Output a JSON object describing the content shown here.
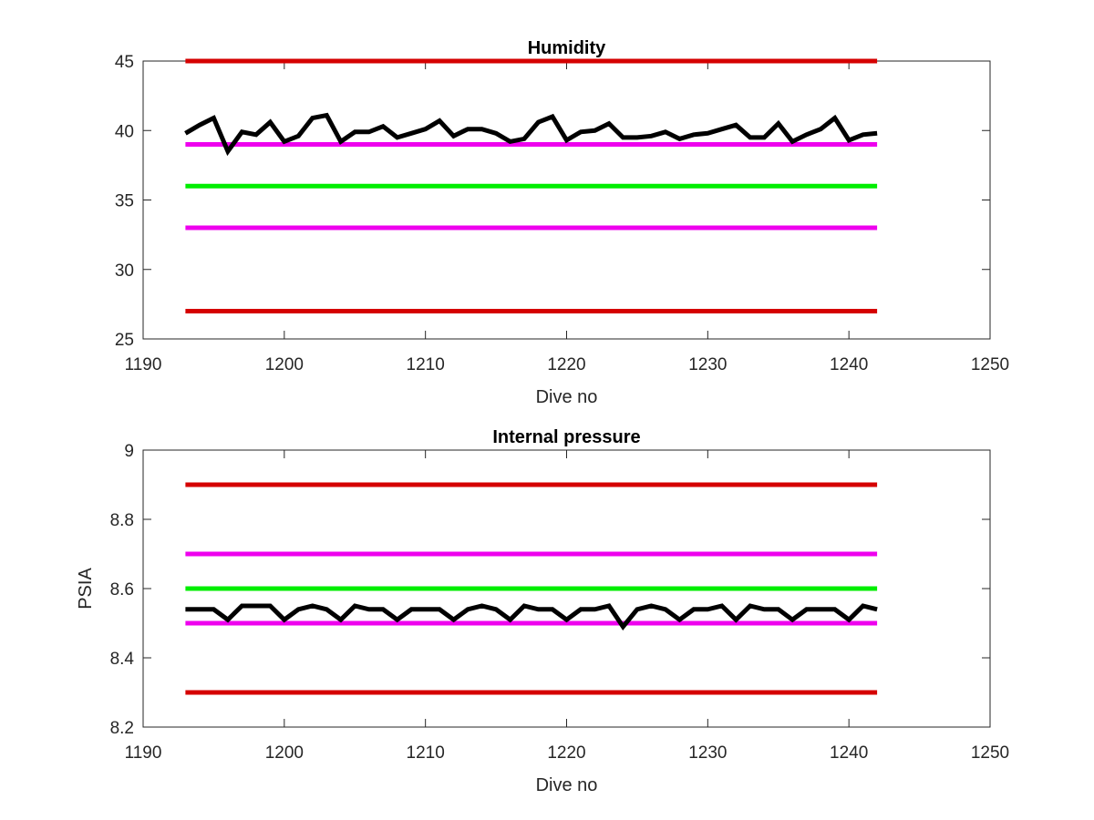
{
  "chart_data": [
    {
      "type": "line",
      "title": "Humidity",
      "xlabel": "Dive no",
      "ylabel": "",
      "xlim": [
        1190,
        1250
      ],
      "ylim": [
        25,
        45
      ],
      "xticks": [
        1190,
        1200,
        1210,
        1220,
        1230,
        1240,
        1250
      ],
      "yticks": [
        25,
        30,
        35,
        40,
        45
      ],
      "grid": false,
      "series": [
        {
          "role": "limit",
          "color": "#d50000",
          "x": [
            1193,
            1242
          ],
          "y": [
            45,
            45
          ]
        },
        {
          "role": "limit",
          "color": "#ee00ee",
          "x": [
            1193,
            1242
          ],
          "y": [
            39,
            39
          ]
        },
        {
          "role": "target",
          "color": "#00ee00",
          "x": [
            1193,
            1242
          ],
          "y": [
            36,
            36
          ]
        },
        {
          "role": "limit",
          "color": "#ee00ee",
          "x": [
            1193,
            1242
          ],
          "y": [
            33,
            33
          ]
        },
        {
          "role": "limit",
          "color": "#d50000",
          "x": [
            1193,
            1242
          ],
          "y": [
            27,
            27
          ]
        },
        {
          "role": "measurement",
          "color": "#000000",
          "x": [
            1193,
            1194,
            1195,
            1196,
            1197,
            1198,
            1199,
            1200,
            1201,
            1202,
            1203,
            1204,
            1205,
            1206,
            1207,
            1208,
            1209,
            1210,
            1211,
            1212,
            1213,
            1214,
            1215,
            1216,
            1217,
            1218,
            1219,
            1220,
            1221,
            1222,
            1223,
            1224,
            1225,
            1226,
            1227,
            1228,
            1229,
            1230,
            1231,
            1232,
            1233,
            1234,
            1235,
            1236,
            1237,
            1238,
            1239,
            1240,
            1241,
            1242
          ],
          "y": [
            39.8,
            40.4,
            40.9,
            38.5,
            39.9,
            39.7,
            40.6,
            39.2,
            39.6,
            40.9,
            41.1,
            39.2,
            39.9,
            39.9,
            40.3,
            39.5,
            39.8,
            40.1,
            40.7,
            39.6,
            40.1,
            40.1,
            39.8,
            39.2,
            39.4,
            40.6,
            41.0,
            39.3,
            39.9,
            40.0,
            40.5,
            39.5,
            39.5,
            39.6,
            39.9,
            39.4,
            39.7,
            39.8,
            40.1,
            40.4,
            39.5,
            39.5,
            40.5,
            39.2,
            39.7,
            40.1,
            40.9,
            39.3,
            39.7,
            39.8
          ]
        }
      ]
    },
    {
      "type": "line",
      "title": "Internal pressure",
      "xlabel": "Dive no",
      "ylabel": "PSIA",
      "xlim": [
        1190,
        1250
      ],
      "ylim": [
        8.2,
        9
      ],
      "xticks": [
        1190,
        1200,
        1210,
        1220,
        1230,
        1240,
        1250
      ],
      "yticks": [
        8.2,
        8.4,
        8.6,
        8.8,
        9
      ],
      "grid": false,
      "series": [
        {
          "role": "limit",
          "color": "#d50000",
          "x": [
            1193,
            1242
          ],
          "y": [
            8.9,
            8.9
          ]
        },
        {
          "role": "limit",
          "color": "#ee00ee",
          "x": [
            1193,
            1242
          ],
          "y": [
            8.7,
            8.7
          ]
        },
        {
          "role": "target",
          "color": "#00ee00",
          "x": [
            1193,
            1242
          ],
          "y": [
            8.6,
            8.6
          ]
        },
        {
          "role": "limit",
          "color": "#ee00ee",
          "x": [
            1193,
            1242
          ],
          "y": [
            8.5,
            8.5
          ]
        },
        {
          "role": "limit",
          "color": "#d50000",
          "x": [
            1193,
            1242
          ],
          "y": [
            8.3,
            8.3
          ]
        },
        {
          "role": "measurement",
          "color": "#000000",
          "x": [
            1193,
            1194,
            1195,
            1196,
            1197,
            1198,
            1199,
            1200,
            1201,
            1202,
            1203,
            1204,
            1205,
            1206,
            1207,
            1208,
            1209,
            1210,
            1211,
            1212,
            1213,
            1214,
            1215,
            1216,
            1217,
            1218,
            1219,
            1220,
            1221,
            1222,
            1223,
            1224,
            1225,
            1226,
            1227,
            1228,
            1229,
            1230,
            1231,
            1232,
            1233,
            1234,
            1235,
            1236,
            1237,
            1238,
            1239,
            1240,
            1241,
            1242
          ],
          "y": [
            8.54,
            8.54,
            8.54,
            8.51,
            8.55,
            8.55,
            8.55,
            8.51,
            8.54,
            8.55,
            8.54,
            8.51,
            8.55,
            8.54,
            8.54,
            8.51,
            8.54,
            8.54,
            8.54,
            8.51,
            8.54,
            8.55,
            8.54,
            8.51,
            8.55,
            8.54,
            8.54,
            8.51,
            8.54,
            8.54,
            8.55,
            8.49,
            8.54,
            8.55,
            8.54,
            8.51,
            8.54,
            8.54,
            8.55,
            8.51,
            8.55,
            8.54,
            8.54,
            8.51,
            8.54,
            8.54,
            8.54,
            8.51,
            8.55,
            8.54
          ]
        }
      ]
    }
  ]
}
